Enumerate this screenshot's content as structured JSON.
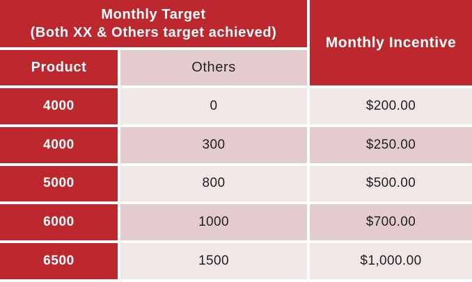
{
  "table": {
    "header": {
      "monthly_target_line1": "Monthly Target",
      "monthly_target_line2": "(Both XX & Others target achieved)",
      "monthly_incentive": "Monthly Incentive",
      "product": "Product",
      "others": "Others"
    },
    "rows": [
      {
        "product": "4000",
        "others": "0",
        "incentive": "$200.00"
      },
      {
        "product": "4000",
        "others": "300",
        "incentive": "$250.00"
      },
      {
        "product": "5000",
        "others": "800",
        "incentive": "$500.00"
      },
      {
        "product": "6000",
        "others": "1000",
        "incentive": "$700.00"
      },
      {
        "product": "6500",
        "others": "1500",
        "incentive": "$1,000.00"
      }
    ],
    "colors": {
      "red": "#BD282E",
      "pink_light": "#F2E6E6",
      "pink_dark": "#E4CCCE",
      "text_dark": "#1f1f1f",
      "text_light": "#ffffff",
      "divider": "#ffffff"
    }
  },
  "chart_data": {
    "type": "table",
    "title": "Monthly Target (Both XX & Others target achieved)",
    "columns": [
      "Product",
      "Others",
      "Monthly Incentive"
    ],
    "rows": [
      [
        "4000",
        "0",
        "$200.00"
      ],
      [
        "4000",
        "300",
        "$250.00"
      ],
      [
        "5000",
        "800",
        "$500.00"
      ],
      [
        "6000",
        "1000",
        "$700.00"
      ],
      [
        "6500",
        "1500",
        "$1,000.00"
      ]
    ],
    "merges": [
      "Monthly Target header spans Product and Others columns",
      "Monthly Incentive header spans both header rows"
    ],
    "layout_hints": {
      "striping": "rows alternate light/dark pink starting light",
      "product_column_style": "red background, white bold text",
      "grid": "white 4px dividers between all cells"
    }
  }
}
